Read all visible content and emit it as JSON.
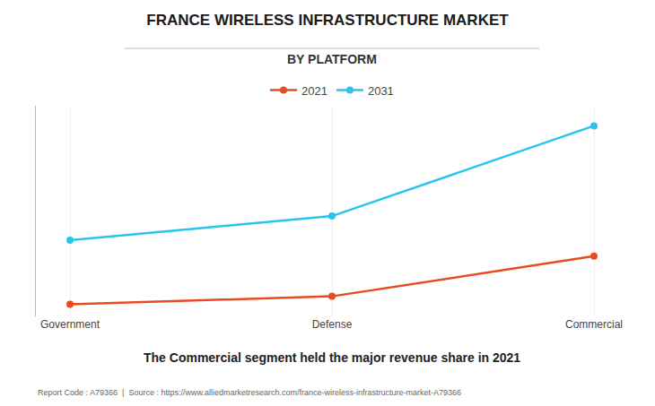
{
  "chart_data": {
    "type": "line",
    "title": "FRANCE WIRELESS INFRASTRUCTURE MARKET",
    "subtitle": "BY PLATFORM",
    "annotations": [
      "The Commercial segment held the major revenue share in 2021",
      "Report Code : A79366  |  Source : https://www.alliedmarketresearch.com/france-wireless-infrastructure-market-A79366"
    ],
    "categories": [
      "Government",
      "Defense",
      "Commercial"
    ],
    "series": [
      {
        "name": "2021",
        "color": "#E84C1E",
        "values": [
          0.06,
          0.1,
          0.3
        ]
      },
      {
        "name": "2031",
        "color": "#29C4EC",
        "values": [
          0.38,
          0.5,
          0.95
        ]
      }
    ],
    "ylim": [
      0,
      1.05
    ],
    "yticks": [],
    "grid": true,
    "legend": "top",
    "tick_labels": "x",
    "marker": "circle"
  }
}
